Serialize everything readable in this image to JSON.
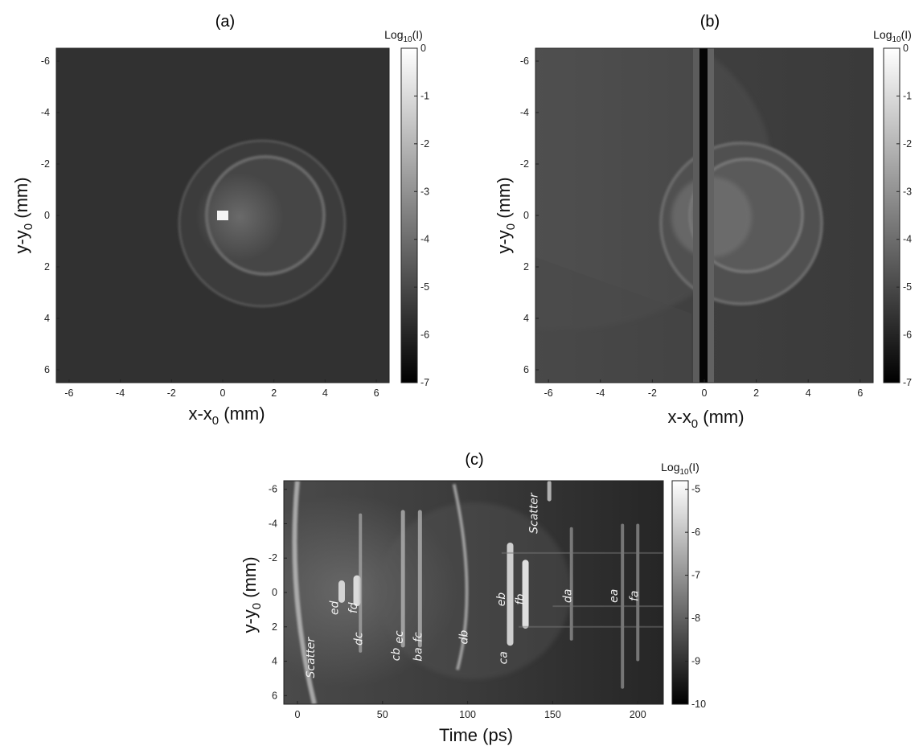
{
  "chart_data": [
    {
      "panel": "(a)",
      "type": "heatmap",
      "xlabel": "x-x0 (mm)",
      "ylabel": "y-y0 (mm)",
      "xlim": [
        -6.5,
        6.5
      ],
      "ylim": [
        -6.5,
        6.5
      ],
      "y_reversed": true,
      "xticks": [
        -6,
        -4,
        -2,
        0,
        2,
        4,
        6
      ],
      "yticks": [
        -6,
        -4,
        -2,
        0,
        2,
        4,
        6
      ],
      "colorbar": {
        "title": "Log10(I)",
        "range": [
          -7,
          0
        ],
        "ticks": [
          0,
          -1,
          -2,
          -3,
          -4,
          -5,
          -6,
          -7
        ]
      },
      "features": {
        "background_level": -6.0,
        "outer_ring": {
          "center": [
            1.5,
            0.3
          ],
          "radius": 3.0,
          "level": -4.6
        },
        "inner_ring": {
          "center": [
            1.5,
            0.3
          ],
          "radius": 2.0,
          "level": -4.2
        },
        "hot_spot": {
          "center": [
            0,
            0
          ],
          "level": -0.3
        }
      }
    },
    {
      "panel": "(b)",
      "type": "heatmap",
      "xlabel": "x-x0 (mm)",
      "ylabel": "y-y0 (mm)",
      "xlim": [
        -6.5,
        6.5
      ],
      "ylim": [
        -6.5,
        6.5
      ],
      "y_reversed": true,
      "xticks": [
        -6,
        -4,
        -2,
        0,
        2,
        4,
        6
      ],
      "yticks": [
        -6,
        -4,
        -2,
        0,
        2,
        4,
        6
      ],
      "colorbar": {
        "title": "Log10(I)",
        "range": [
          -7,
          0
        ],
        "ticks": [
          0,
          -1,
          -2,
          -3,
          -4,
          -5,
          -6,
          -7
        ]
      },
      "features": {
        "background_level": -5.6,
        "outer_ring": {
          "center": [
            1.5,
            0.3
          ],
          "radius": 3.0,
          "level": -4.5
        },
        "inner_ring": {
          "center": [
            1.5,
            0.3
          ],
          "radius": 2.0,
          "level": -4.3
        },
        "dark_column_x": 0
      }
    },
    {
      "panel": "(c)",
      "type": "heatmap",
      "xlabel": "Time (ps)",
      "ylabel": "y-y0 (mm)",
      "xlim": [
        -8,
        215
      ],
      "ylim": [
        -6.5,
        6.5
      ],
      "y_reversed": true,
      "xticks": [
        0,
        50,
        100,
        150,
        200
      ],
      "yticks": [
        -6,
        -4,
        -2,
        0,
        2,
        4,
        6
      ],
      "colorbar": {
        "title": "Log10(I)",
        "range": [
          -10,
          -4.8
        ],
        "ticks": [
          -5,
          -6,
          -7,
          -8,
          -9,
          -10
        ]
      },
      "annotations": [
        {
          "text": "Scatter",
          "x": 10,
          "y": 3.8
        },
        {
          "text": "ed",
          "x": 24,
          "y": 0.9
        },
        {
          "text": "fd",
          "x": 35,
          "y": 0.9
        },
        {
          "text": "dc",
          "x": 38,
          "y": 2.7
        },
        {
          "text": "cb",
          "x": 60,
          "y": 3.6
        },
        {
          "text": "ec",
          "x": 62,
          "y": 2.6
        },
        {
          "text": "ba",
          "x": 73,
          "y": 3.6
        },
        {
          "text": "fc",
          "x": 73,
          "y": 2.6
        },
        {
          "text": "db",
          "x": 100,
          "y": 2.6
        },
        {
          "text": "eb",
          "x": 122,
          "y": 0.4
        },
        {
          "text": "ca",
          "x": 123,
          "y": 3.8
        },
        {
          "text": "Scatter",
          "x": 141,
          "y": -4.6
        },
        {
          "text": "fb",
          "x": 133,
          "y": 0.4
        },
        {
          "text": "da",
          "x": 161,
          "y": 0.2
        },
        {
          "text": "ea",
          "x": 188,
          "y": 0.2
        },
        {
          "text": "fa",
          "x": 200,
          "y": 0.2
        }
      ]
    }
  ],
  "panels": {
    "a": {
      "title": "(a)"
    },
    "b": {
      "title": "(b)"
    },
    "c": {
      "title": "(c)"
    }
  },
  "axis_text": {
    "x_mm_main": "x-x",
    "x_mm_sub": "0",
    "x_mm_tail": " (mm)",
    "y_mm_main": "y-y",
    "y_mm_sub": "0",
    "y_mm_tail": " (mm)",
    "time": "Time (ps)",
    "cb_main": "Log",
    "cb_sub": "10",
    "cb_tail": "(I)"
  }
}
